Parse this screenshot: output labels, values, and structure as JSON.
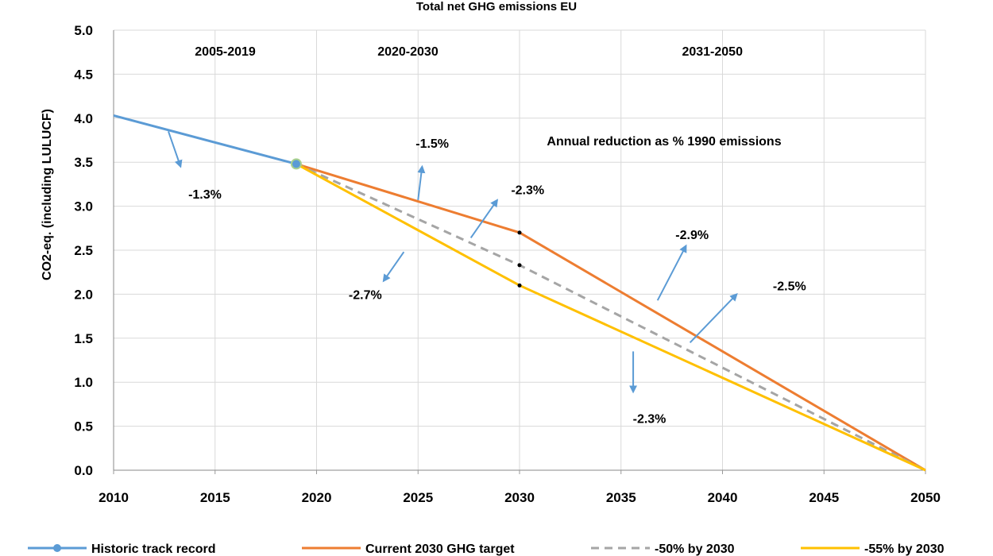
{
  "chart_data": {
    "type": "line",
    "title": "Total net GHG emissions EU",
    "ylabel": "CO2-eq. (including LULUCF)",
    "xlabel": "",
    "xlim": [
      2010,
      2050
    ],
    "ylim": [
      0,
      5
    ],
    "x_ticks": [
      2010,
      2015,
      2020,
      2025,
      2030,
      2035,
      2040,
      2045,
      2050
    ],
    "y_ticks": [
      "0.0",
      "0.5",
      "1.0",
      "1.5",
      "2.0",
      "2.5",
      "3.0",
      "3.5",
      "4.0",
      "4.5",
      "5.0"
    ],
    "grid": true,
    "legend_position": "bottom",
    "periods": [
      {
        "label": "2005-2019",
        "x": 2015.5
      },
      {
        "label": "2020-2030",
        "x": 2024.5
      },
      {
        "label": "2031-2050",
        "x": 2039.5
      }
    ],
    "note": "Annual reduction as % 1990 emissions",
    "series": [
      {
        "name": "Historic track record",
        "color": "#5B9BD5",
        "style": "solid",
        "x": [
          2010,
          2019
        ],
        "y": [
          4.03,
          3.48
        ]
      },
      {
        "name": "Current 2030 GHG target",
        "color": "#ED7D31",
        "style": "solid",
        "x": [
          2019,
          2030,
          2050
        ],
        "y": [
          3.48,
          2.7,
          0.0
        ]
      },
      {
        "name": "-50% by 2030",
        "color": "#A5A5A5",
        "style": "dashed",
        "x": [
          2019,
          2030,
          2050
        ],
        "y": [
          3.48,
          2.33,
          0.0
        ]
      },
      {
        "name": "-55% by 2030",
        "color": "#FFC000",
        "style": "solid",
        "x": [
          2019,
          2030,
          2050
        ],
        "y": [
          3.48,
          2.1,
          0.0
        ]
      }
    ],
    "annotations": [
      {
        "text": "-1.3%",
        "x": 2014.5,
        "y": 3.14,
        "arrow_from": [
          2012.7,
          3.85
        ],
        "arrow_to": [
          2013.3,
          3.45
        ]
      },
      {
        "text": "-1.5%",
        "x": 2025.7,
        "y": 3.72,
        "arrow_from": [
          2025.0,
          3.07
        ],
        "arrow_to": [
          2025.2,
          3.45
        ]
      },
      {
        "text": "-2.3%",
        "x": 2030.4,
        "y": 3.19,
        "arrow_from": [
          2027.6,
          2.64
        ],
        "arrow_to": [
          2028.9,
          3.07
        ]
      },
      {
        "text": "-2.7%",
        "x": 2022.4,
        "y": 2.0,
        "arrow_from": [
          2024.3,
          2.48
        ],
        "arrow_to": [
          2023.3,
          2.15
        ]
      },
      {
        "text": "-2.9%",
        "x": 2038.5,
        "y": 2.68,
        "arrow_from": [
          2036.8,
          1.93
        ],
        "arrow_to": [
          2038.2,
          2.55
        ]
      },
      {
        "text": "-2.5%",
        "x": 2043.3,
        "y": 2.1,
        "arrow_from": [
          2038.4,
          1.45
        ],
        "arrow_to": [
          2040.7,
          2.0
        ]
      },
      {
        "text": "-2.3%",
        "x": 2036.4,
        "y": 0.59,
        "arrow_from": [
          2035.6,
          1.35
        ],
        "arrow_to": [
          2035.6,
          0.89
        ]
      }
    ]
  }
}
